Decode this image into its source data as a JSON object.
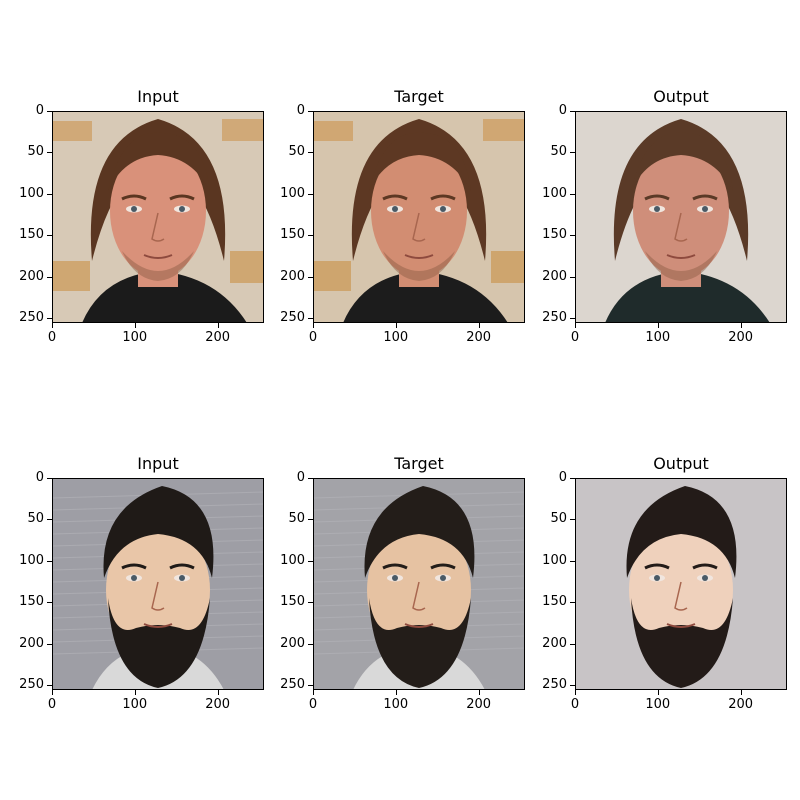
{
  "figure": {
    "rows": [
      {
        "panels": [
          {
            "title": "Input",
            "image": "male-face-long-hair-photo-event-backdrop",
            "palette": {
              "bg": "#d7c9b6",
              "hair": "#5a3621",
              "skin": "#d9917a",
              "shirt": "#1b1b1b",
              "accent": "#c98a3a"
            }
          },
          {
            "title": "Target",
            "image": "male-face-long-hair-photo-event-backdrop-color-adjusted",
            "palette": {
              "bg": "#d6c5ad",
              "hair": "#5d3823",
              "skin": "#d28d72",
              "shirt": "#1c1c1c",
              "accent": "#c98a3a"
            }
          },
          {
            "title": "Output",
            "image": "male-face-long-hair-generated-blurred-background",
            "palette": {
              "bg": "#dcd6cf",
              "hair": "#5a3a27",
              "skin": "#cf8e7a",
              "shirt": "#1f2b2b",
              "accent": "#dcd6cf"
            }
          }
        ]
      },
      {
        "panels": [
          {
            "title": "Input",
            "image": "male-face-beard-grey-background",
            "palette": {
              "bg": "#9e9ea5",
              "hair": "#1f1a17",
              "skin": "#e9c6a8",
              "shirt": "#d9d9d9",
              "accent": "#9e9ea5"
            }
          },
          {
            "title": "Target",
            "image": "male-face-beard-grey-background-color-adjusted",
            "palette": {
              "bg": "#a3a3a8",
              "hair": "#231d19",
              "skin": "#e6c2a2",
              "shirt": "#d9d9d9",
              "accent": "#a3a3a8"
            }
          },
          {
            "title": "Output",
            "image": "male-face-beard-generated-light-background",
            "palette": {
              "bg": "#c8c4c6",
              "hair": "#231b18",
              "skin": "#efd1bc",
              "shirt": "#c8c4c6",
              "accent": "#c8c4c6"
            }
          }
        ]
      }
    ],
    "axes": {
      "y_ticks": [
        "0",
        "50",
        "100",
        "150",
        "200",
        "250"
      ],
      "x_ticks": [
        "0",
        "100",
        "200"
      ],
      "y_values": [
        0,
        50,
        100,
        150,
        200,
        250
      ],
      "x_values": [
        0,
        100,
        200
      ],
      "extent": 256
    }
  }
}
